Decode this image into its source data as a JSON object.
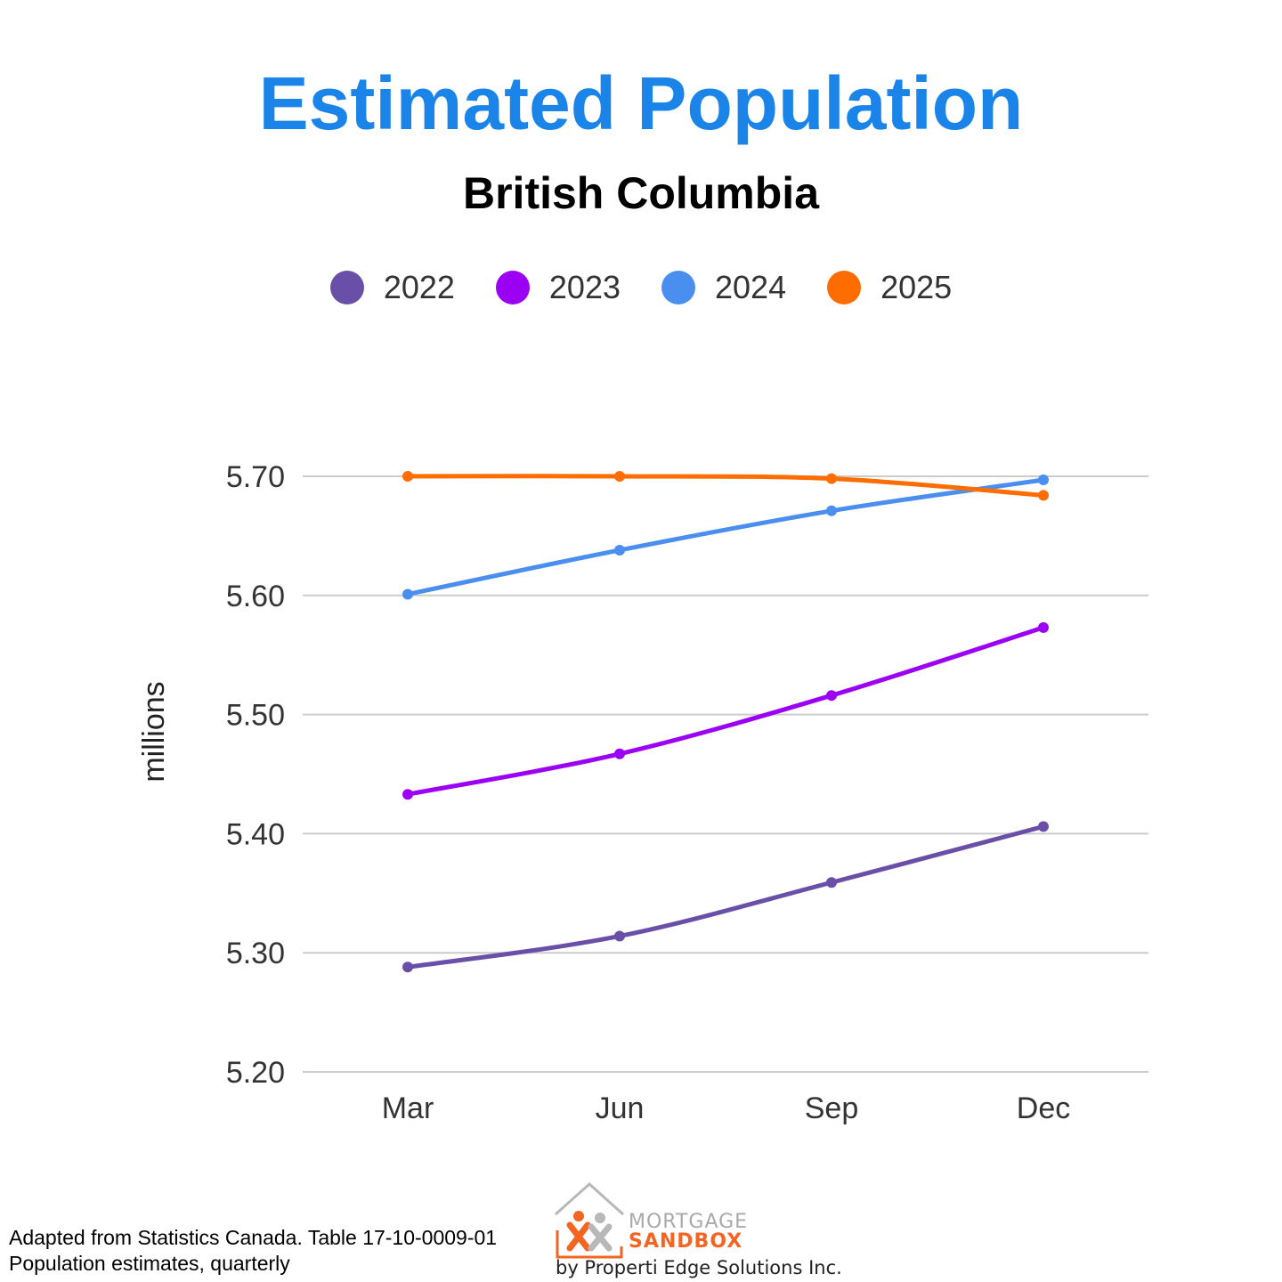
{
  "chart_data": {
    "type": "line",
    "title": "Estimated Population",
    "subtitle": "British Columbia",
    "xlabel": "",
    "ylabel": "millions",
    "categories": [
      "Mar",
      "Jun",
      "Sep",
      "Dec"
    ],
    "ylim": [
      5.2,
      5.7
    ],
    "yticks": [
      "5.20",
      "5.30",
      "5.40",
      "5.50",
      "5.60",
      "5.70"
    ],
    "grid": true,
    "legend_position": "top",
    "series": [
      {
        "name": "2022",
        "color": "#6a4fa8",
        "values": [
          5.288,
          5.314,
          5.359,
          5.406
        ]
      },
      {
        "name": "2023",
        "color": "#9b00f5",
        "values": [
          5.433,
          5.467,
          5.516,
          5.573
        ]
      },
      {
        "name": "2024",
        "color": "#4a8ef0",
        "values": [
          5.601,
          5.638,
          5.671,
          5.697
        ]
      },
      {
        "name": "2025",
        "color": "#ff6d00",
        "values": [
          5.7,
          5.7,
          5.698,
          5.684
        ]
      }
    ]
  },
  "source": {
    "line1": "Adapted from Statistics Canada. Table 17-10-0009-01",
    "line2": "Population estimates, quarterly"
  },
  "logo": {
    "word1": "MORTGAGE",
    "word2": "SANDBOX",
    "byline": "by Properti Edge Solutions Inc."
  }
}
